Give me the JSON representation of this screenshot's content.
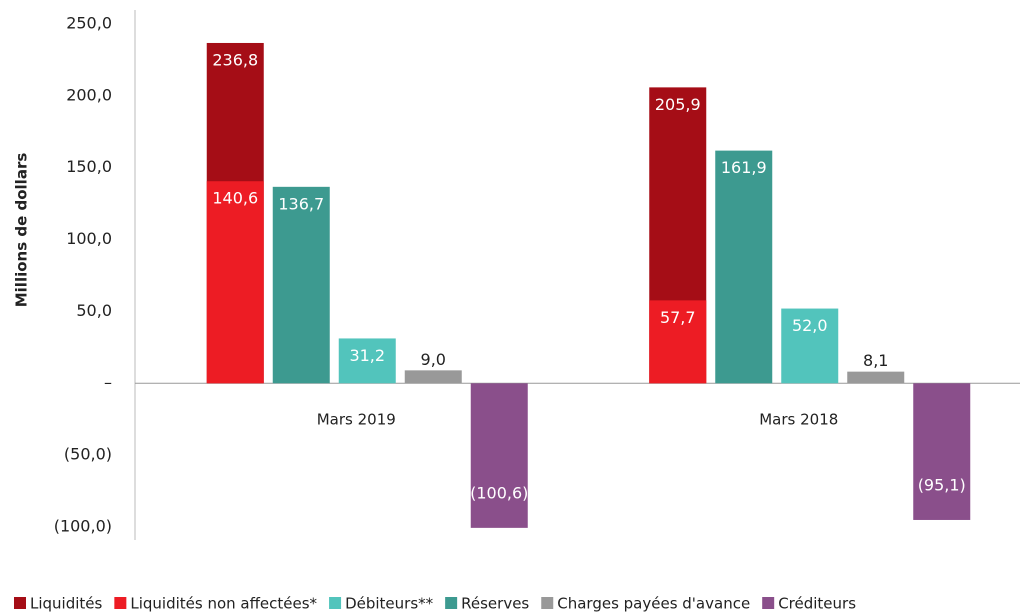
{
  "chart_data": {
    "type": "bar",
    "y_axis_label": "Millions de dollars",
    "categories": [
      "Mars 2019",
      "Mars 2018"
    ],
    "series": [
      {
        "name": "Liquidités",
        "color": "#a50d16",
        "values": [
          236.8,
          205.9
        ],
        "value_labels": [
          "236,8",
          "205,9"
        ]
      },
      {
        "name": "Liquidités non affectées*",
        "color": "#ed1c24",
        "values": [
          140.6,
          57.7
        ],
        "value_labels": [
          "140,6",
          "57,7"
        ]
      },
      {
        "name": "Débiteurs**",
        "color": "#52c4bc",
        "values": [
          31.2,
          52.0
        ],
        "value_labels": [
          "31,2",
          "52,0"
        ]
      },
      {
        "name": "Réserves",
        "color": "#3d9a90",
        "values": [
          136.7,
          161.9
        ],
        "value_labels": [
          "136,7",
          "161,9"
        ]
      },
      {
        "name": "Charges payées d'avance",
        "color": "#999999",
        "values": [
          9.0,
          8.1
        ],
        "value_labels": [
          "9,0",
          "8,1"
        ]
      },
      {
        "name": "Créditeurs",
        "color": "#8a4f8b",
        "values": [
          -100.6,
          -95.1
        ],
        "value_labels": [
          "(100,6)",
          "(95,1)"
        ]
      }
    ],
    "ylim": [
      -100,
      250
    ],
    "yticks": [
      {
        "value": 250,
        "label": "250,0"
      },
      {
        "value": 200,
        "label": "200,0"
      },
      {
        "value": 150,
        "label": "150,0"
      },
      {
        "value": 100,
        "label": "100,0"
      },
      {
        "value": 50,
        "label": "50,0"
      },
      {
        "value": 0,
        "label": "–"
      },
      {
        "value": -50,
        "label": "(50,0)"
      },
      {
        "value": -100,
        "label": "(100,0)"
      }
    ],
    "legend": "bottom"
  }
}
